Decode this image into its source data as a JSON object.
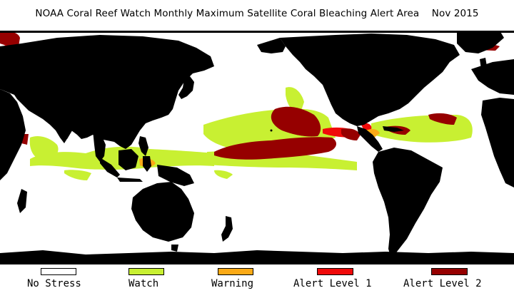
{
  "title": "NOAA Coral Reef Watch Monthly Maximum Satellite Coral Bleaching Alert Area    Nov 2015",
  "map": {
    "projection": "equirectangular",
    "center_longitude": 180,
    "land_color": "#000000",
    "ocean_color": "#ffffff"
  },
  "legend": [
    {
      "label": "No Stress",
      "color": "#ffffff"
    },
    {
      "label": "Watch",
      "color": "#c8f032"
    },
    {
      "label": "Warning",
      "color": "#fbaa16"
    },
    {
      "label": "Alert Level 1",
      "color": "#f00a0a"
    },
    {
      "label": "Alert Level 2",
      "color": "#960000"
    }
  ]
}
